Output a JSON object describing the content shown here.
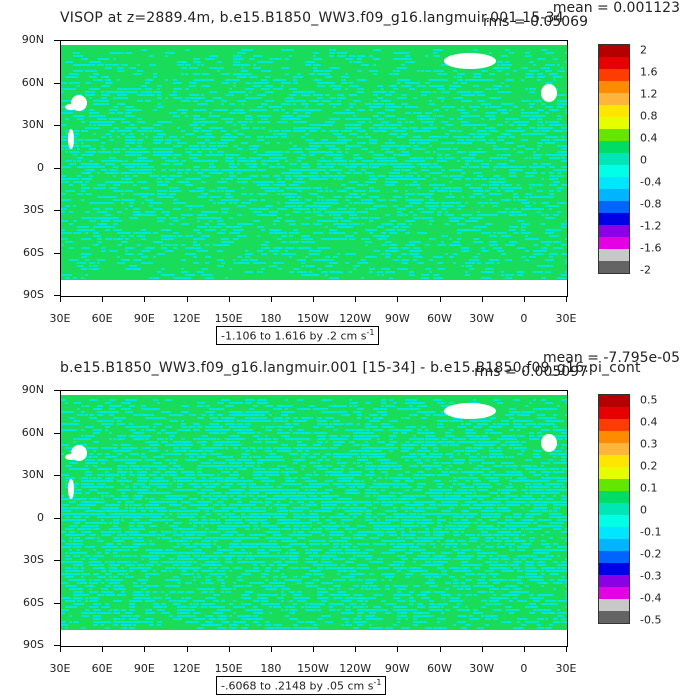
{
  "panels": [
    {
      "title": "VISOP at z=2889.4m, b.e15.B1850_WW3.f09_g16.langmuir.001 15-34",
      "mean": "mean = 0.001123",
      "rms": "rms = 0.05069",
      "range": "-1.106 to 1.616 by .2 cm s",
      "range_unit_sup": "-1",
      "colorbar_labels": [
        "2",
        "1.6",
        "1.2",
        "0.8",
        "0.4",
        "0",
        "-0.4",
        "-0.8",
        "-1.2",
        "-1.6",
        "-2"
      ]
    },
    {
      "title": "b.e15.B1850_WW3.f09_g16.langmuir.001 [15-34] - b.e15.B1850.f09_g16.pi_cont",
      "mean": "mean = -7.795e-05",
      "rms": "rms = 0.005097",
      "range": "-.6068 to .2148 by .05 cm s",
      "range_unit_sup": "-1",
      "colorbar_labels": [
        "0.5",
        "0.4",
        "0.3",
        "0.2",
        "0.1",
        "0",
        "-0.1",
        "-0.2",
        "-0.3",
        "-0.4",
        "-0.5"
      ]
    }
  ],
  "lat_labels": [
    "90N",
    "60N",
    "30N",
    "0",
    "30S",
    "60S",
    "90S"
  ],
  "lon_labels": [
    "30E",
    "60E",
    "90E",
    "120E",
    "150E",
    "180",
    "150W",
    "120W",
    "90W",
    "60W",
    "30W",
    "0",
    "30E"
  ],
  "colorbar_colors": [
    "#b40000",
    "#e60000",
    "#ff3c00",
    "#ff8c00",
    "#ffb43c",
    "#ffe600",
    "#e6ff00",
    "#64e600",
    "#00dc64",
    "#00e6b4",
    "#00ffe6",
    "#00e6ff",
    "#00b4ff",
    "#0064ff",
    "#0000e6",
    "#8c00e6",
    "#e600e6",
    "#c8c8c8",
    "#646464"
  ],
  "colors": {
    "ocean_main": "#19dc5a",
    "ocean_alt": "#00e6dc",
    "land": "#ffffff"
  }
}
